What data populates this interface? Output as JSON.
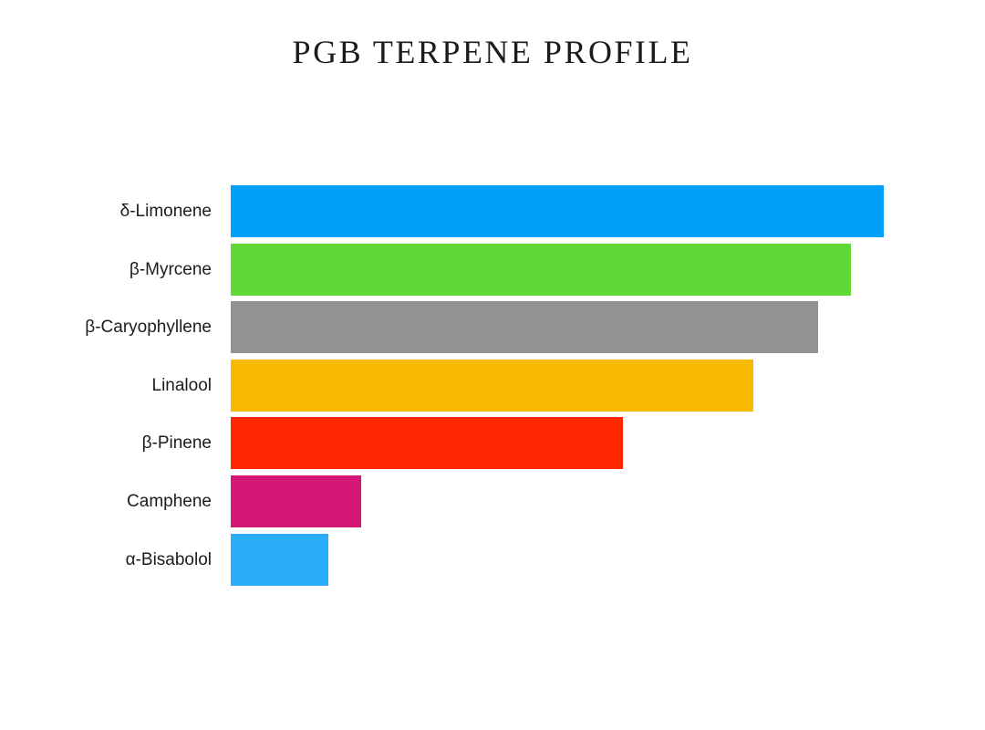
{
  "title": "PGB TERPENE PROFILE",
  "chart_data": {
    "type": "bar",
    "orientation": "horizontal",
    "title": "PGB TERPENE PROFILE",
    "categories": [
      "δ-Limonene",
      "β-Myrcene",
      "β-Caryophyllene",
      "Linalool",
      "β-Pinene",
      "Camphene",
      "α-Bisabolol"
    ],
    "values": [
      100,
      95,
      90,
      80,
      60,
      20,
      15
    ],
    "colors": [
      "#009FFA",
      "#5ED936",
      "#929292",
      "#F8BA00",
      "#FF2600",
      "#D31876",
      "#29ADFA"
    ],
    "xlabel": "",
    "ylabel": "",
    "xlim": [
      0,
      100
    ],
    "grid": false,
    "legend": false,
    "value_labels_shown": false,
    "axis_ticks_shown": false
  },
  "colors": {
    "background": "#ffffff",
    "title_text": "#1b1b1b",
    "label_text": "#1c1c1c"
  }
}
